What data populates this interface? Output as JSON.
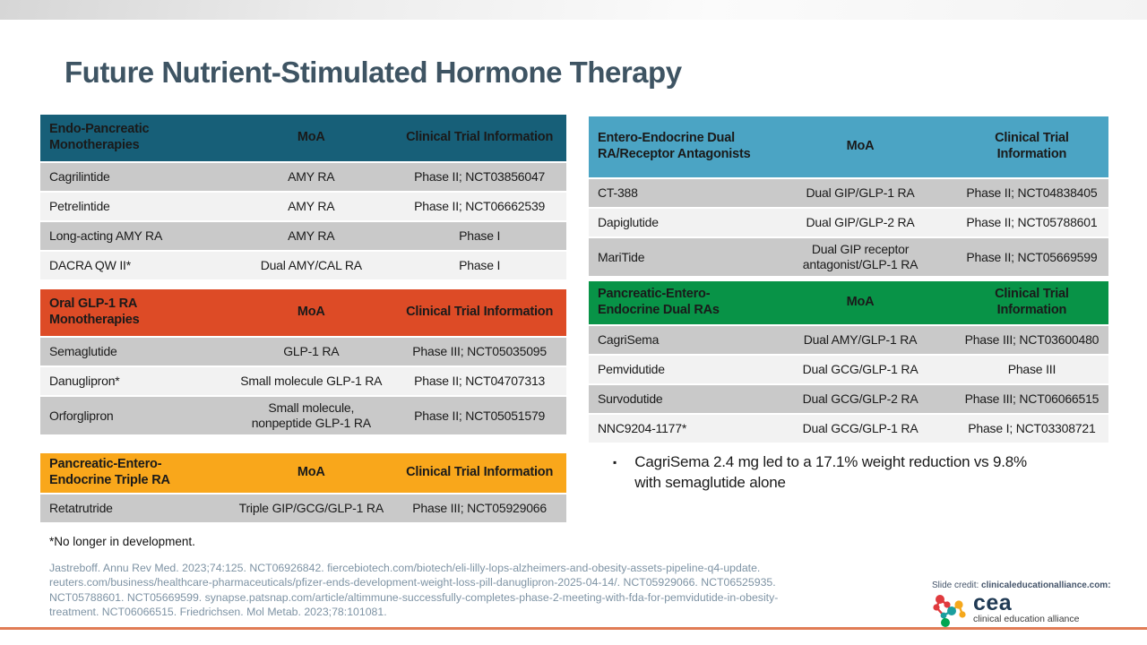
{
  "slide": {
    "title": "Future Nutrient-Stimulated Hormone Therapy",
    "bullet_marker": "▪",
    "bullet": "CagriSema 2.4 mg led to a 17.1% weight reduction vs 9.8% with semaglutide alone",
    "footnote": "*No longer in development.",
    "references": "Jastreboff. Annu Rev Med. 2023;74:125. NCT06926842. fiercebiotech.com/biotech/eli-lilly-lops-alzheimers-and-obesity-assets-pipeline-q4-update. reuters.com/business/healthcare-pharmaceuticals/pfizer-ends-development-weight-loss-pill-danuglipron-2025-04-14/. NCT05929066. NCT06525935. NCT05788601. NCT05669599. synapse.patsnap.com/article/altimmune-successfully-completes-phase-2-meeting-with-fda-for-pemvidutide-in-obesity-treatment. NCT06066515. Friedrichsen. Mol Metab. 2023;78:101081.",
    "credit": {
      "label": "Slide credit:",
      "site": "clinicaleducationalliance.com:"
    },
    "logo": {
      "brand": "cea",
      "tagline": "clinical education alliance"
    },
    "colors": {
      "title": "#3E5463",
      "row_dark": "#C9C9C9",
      "row_light": "#F2F2F2",
      "references_text": "#7E93A4",
      "bottom_accent_line": "#E17C55",
      "logo_red": "#E03A3E",
      "logo_orange": "#F5A81C",
      "logo_green": "#00A651",
      "logo_teal": "#1B9E9E"
    }
  },
  "tables": {
    "left": [
      {
        "id": "endo-pancreatic-monotherapies",
        "header_bg": "#175F78",
        "header_fg": "#FFFFFF",
        "columns": [
          "Endo-Pancreatic Monotherapies",
          "MoA",
          "Clinical Trial Information"
        ],
        "rows": [
          [
            "Cagrilintide",
            "AMY RA",
            "Phase II; NCT03856047"
          ],
          [
            "Petrelintide",
            "AMY RA",
            "Phase II; NCT06662539"
          ],
          [
            "Long-acting AMY RA",
            "AMY RA",
            "Phase I"
          ],
          [
            "DACRA QW II*",
            "Dual AMY/CAL RA",
            "Phase I"
          ]
        ]
      },
      {
        "id": "oral-glp1-ra-monotherapies",
        "header_bg": "#DD4B26",
        "header_fg": "#FFFFFF",
        "columns": [
          "Oral GLP-1 RA Monotherapies",
          "MoA",
          "Clinical Trial Information"
        ],
        "rows": [
          [
            "Semaglutide",
            "GLP-1 RA",
            "Phase III; NCT05035095"
          ],
          [
            "Danuglipron*",
            "Small molecule GLP-1 RA",
            "Phase II; NCT04707313"
          ],
          [
            "Orforglipron",
            "Small molecule, nonpeptide GLP-1 RA",
            "Phase II; NCT05051579"
          ]
        ]
      },
      {
        "id": "pancreatic-entero-endocrine-triple-ra",
        "header_bg": "#F9A71B",
        "header_fg": "#1A1A1A",
        "columns": [
          "Pancreatic-Entero-Endocrine Triple RA",
          "MoA",
          "Clinical Trial Information"
        ],
        "rows": [
          [
            "Retatrutride",
            "Triple GIP/GCG/GLP-1 RA",
            "Phase III; NCT05929066"
          ]
        ]
      }
    ],
    "right": [
      {
        "id": "entero-endocrine-dual-ra-receptor-antagonists",
        "header_bg": "#4BA4C4",
        "header_fg": "#FFFFFF",
        "columns": [
          "Entero-Endocrine Dual RA/Receptor Antagonists",
          "MoA",
          "Clinical Trial Information"
        ],
        "rows": [
          [
            "CT-388",
            "Dual GIP/GLP-1 RA",
            "Phase II; NCT04838405"
          ],
          [
            "Dapiglutide",
            "Dual GIP/GLP-2 RA",
            "Phase II; NCT05788601"
          ],
          [
            "MariTide",
            "Dual GIP receptor antagonist/GLP-1 RA",
            "Phase II; NCT05669599"
          ]
        ]
      },
      {
        "id": "pancreatic-entero-endocrine-dual-ras",
        "header_bg": "#089347",
        "header_fg": "#FFFFFF",
        "columns": [
          "Pancreatic-Entero-Endocrine Dual RAs",
          "MoA",
          "Clinical Trial Information"
        ],
        "rows": [
          [
            "CagriSema",
            "Dual AMY/GLP-1 RA",
            "Phase III; NCT03600480"
          ],
          [
            "Pemvidutide",
            "Dual GCG/GLP-1 RA",
            "Phase III"
          ],
          [
            "Survodutide",
            "Dual GCG/GLP-2 RA",
            "Phase III; NCT06066515"
          ],
          [
            "NNC9204-1177*",
            "Dual GCG/GLP-1 RA",
            "Phase I; NCT03308721"
          ]
        ]
      }
    ]
  }
}
